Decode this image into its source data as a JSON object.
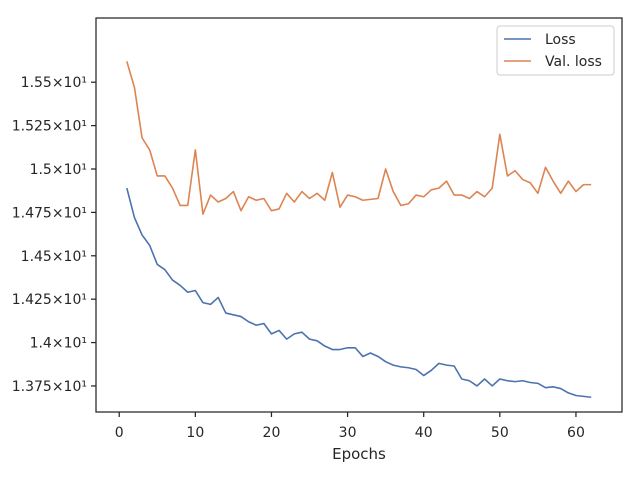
{
  "chart_data": {
    "type": "line",
    "title": "",
    "xlabel": "Epochs",
    "ylabel": "",
    "xlim": [
      -3.05,
      66.05
    ],
    "ylim": [
      13.6,
      15.87
    ],
    "x_ticks": [
      0,
      10,
      20,
      30,
      40,
      50,
      60
    ],
    "x_tick_labels": [
      "0",
      "10",
      "20",
      "30",
      "40",
      "50",
      "60"
    ],
    "y_ticks": [
      13.75,
      14.0,
      14.25,
      14.5,
      14.75,
      15.0,
      15.25,
      15.5
    ],
    "y_tick_labels": [
      "1.375×10¹",
      "1.4×10¹",
      "1.425×10¹",
      "1.45×10¹",
      "1.475×10¹",
      "1.5×10¹",
      "1.525×10¹",
      "1.55×10¹"
    ],
    "grid": false,
    "legend_position": "top-right",
    "x": [
      1,
      2,
      3,
      4,
      5,
      6,
      7,
      8,
      9,
      10,
      11,
      12,
      13,
      14,
      15,
      16,
      17,
      18,
      19,
      20,
      21,
      22,
      23,
      24,
      25,
      26,
      27,
      28,
      29,
      30,
      31,
      32,
      33,
      34,
      35,
      36,
      37,
      38,
      39,
      40,
      41,
      42,
      43,
      44,
      45,
      46,
      47,
      48,
      49,
      50,
      51,
      52,
      53,
      54,
      55,
      56,
      57,
      58,
      59,
      60,
      61,
      62
    ],
    "series": [
      {
        "name": "Loss",
        "color": "#4c72b0",
        "values": [
          14.89,
          14.72,
          14.62,
          14.56,
          14.45,
          14.42,
          14.36,
          14.33,
          14.29,
          14.3,
          14.23,
          14.22,
          14.26,
          14.17,
          14.16,
          14.15,
          14.12,
          14.1,
          14.11,
          14.05,
          14.07,
          14.02,
          14.05,
          14.06,
          14.02,
          14.01,
          13.98,
          13.96,
          13.96,
          13.97,
          13.97,
          13.92,
          13.94,
          13.92,
          13.89,
          13.87,
          13.86,
          13.855,
          13.845,
          13.81,
          13.84,
          13.88,
          13.87,
          13.865,
          13.79,
          13.78,
          13.75,
          13.79,
          13.75,
          13.79,
          13.78,
          13.775,
          13.78,
          13.77,
          13.765,
          13.74,
          13.745,
          13.735,
          13.71,
          13.695,
          13.69,
          13.685
        ]
      },
      {
        "name": "Val. loss",
        "color": "#dd8452",
        "values": [
          15.62,
          15.47,
          15.18,
          15.11,
          14.96,
          14.96,
          14.89,
          14.79,
          14.79,
          15.11,
          14.74,
          14.85,
          14.81,
          14.83,
          14.87,
          14.76,
          14.84,
          14.82,
          14.83,
          14.76,
          14.77,
          14.86,
          14.81,
          14.87,
          14.83,
          14.86,
          14.82,
          14.98,
          14.78,
          14.85,
          14.84,
          14.82,
          14.825,
          14.83,
          15.0,
          14.87,
          14.79,
          14.8,
          14.85,
          14.84,
          14.88,
          14.89,
          14.93,
          14.85,
          14.85,
          14.83,
          14.87,
          14.84,
          14.89,
          15.2,
          14.96,
          14.99,
          14.94,
          14.92,
          14.86,
          15.01,
          14.93,
          14.86,
          14.93,
          14.87,
          14.91,
          14.91
        ]
      }
    ]
  }
}
